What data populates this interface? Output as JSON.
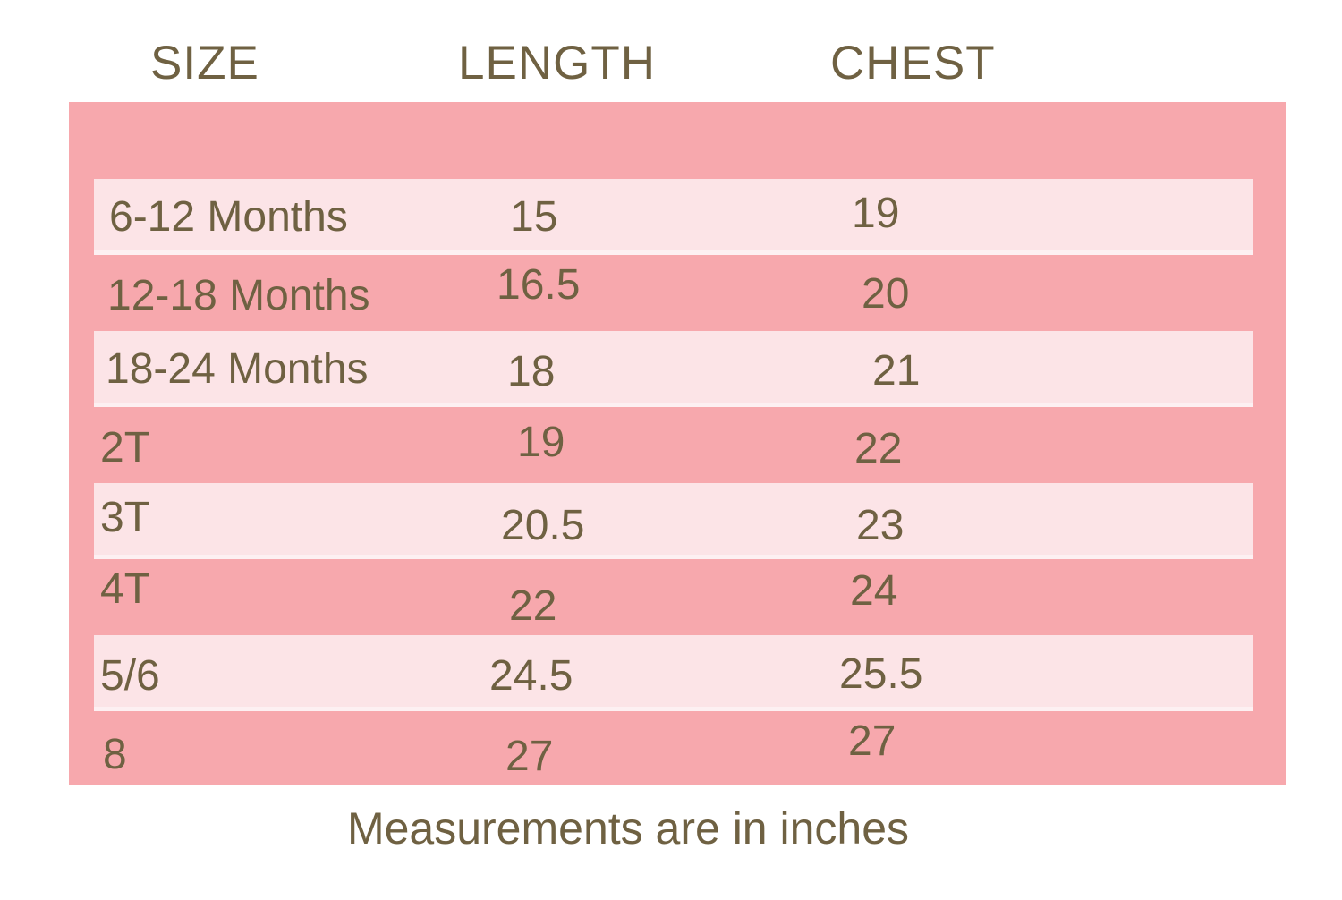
{
  "chart_data": {
    "type": "table",
    "columns": [
      "SIZE",
      "LENGTH",
      "CHEST"
    ],
    "rows": [
      [
        "6-12 Months",
        15,
        19
      ],
      [
        "12-18 Months",
        16.5,
        20
      ],
      [
        "18-24 Months",
        18,
        21
      ],
      [
        "2T",
        19,
        22
      ],
      [
        "3T",
        20.5,
        23
      ],
      [
        "4T",
        22,
        24
      ],
      [
        "5/6",
        24.5,
        25.5
      ],
      [
        "8",
        27,
        27
      ]
    ],
    "footnote": "Measurements are in inches",
    "units": "inches",
    "layout_hints": {
      "stripes": "alternating light rows starting with first data row",
      "grid": false
    }
  },
  "header": {
    "size": "SIZE",
    "length": "LENGTH",
    "chest": "CHEST"
  },
  "rows": [
    {
      "size": "6-12 Months",
      "length": "15",
      "chest": "19"
    },
    {
      "size": "12-18 Months",
      "length": "16.5",
      "chest": "20"
    },
    {
      "size": "18-24 Months",
      "length": "18",
      "chest": "21"
    },
    {
      "size": "2T",
      "length": "19",
      "chest": "22"
    },
    {
      "size": "3T",
      "length": "20.5",
      "chest": "23"
    },
    {
      "size": "4T",
      "length": "22",
      "chest": "24"
    },
    {
      "size": "5/6",
      "length": "24.5",
      "chest": "25.5"
    },
    {
      "size": "8",
      "length": "27",
      "chest": "27"
    }
  ],
  "caption": "Measurements are in inches",
  "colors": {
    "panel": "#F7A8AD",
    "stripe": "#FCE4E7",
    "text": "#6F6142",
    "page_bg": "#FFFFFF"
  }
}
